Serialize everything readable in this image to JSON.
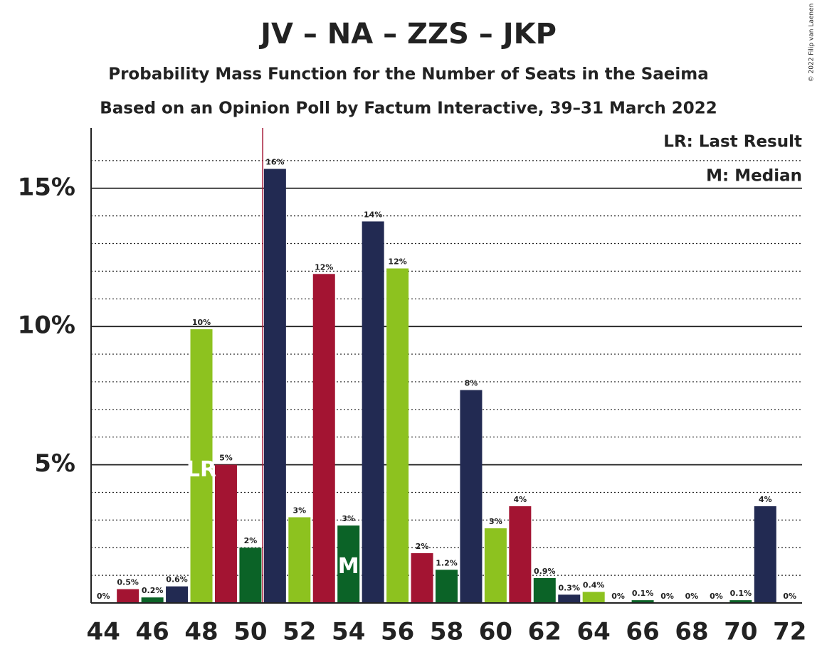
{
  "chart_data": {
    "type": "bar",
    "title": "JV – NA – ZZS – JKP",
    "subtitle": "Probability Mass Function for the Number of Seats in the Saeima",
    "subtitle2": "Based on an Opinion Poll by Factum Interactive, 39–31 March 2022",
    "credit": "© 2022 Filip van Laenen",
    "legend": [
      "LR: Last Result",
      "M: Median"
    ],
    "x": [
      44,
      45,
      46,
      47,
      48,
      49,
      50,
      51,
      52,
      53,
      54,
      55,
      56,
      57,
      58,
      59,
      60,
      61,
      62,
      63,
      64,
      65,
      66,
      67,
      68,
      69,
      70,
      71,
      72
    ],
    "values": [
      0,
      0.5,
      0.2,
      0.6,
      9.9,
      5.0,
      2.0,
      15.7,
      3.1,
      11.9,
      2.8,
      13.8,
      12.1,
      1.8,
      1.2,
      7.7,
      2.7,
      3.5,
      0.9,
      0.3,
      0.4,
      0,
      0.1,
      0,
      0,
      0,
      0.1,
      3.5,
      0
    ],
    "value_labels": [
      "0%",
      "0.5%",
      "0.2%",
      "0.6%",
      "10%",
      "5%",
      "2%",
      "16%",
      "3%",
      "12%",
      "3%",
      "14%",
      "12%",
      "2%",
      "1.2%",
      "8%",
      "3%",
      "4%",
      "0.9%",
      "0.3%",
      "0.4%",
      "0%",
      "0.1%",
      "0%",
      "0%",
      "0%",
      "0.1%",
      "4%",
      "0%"
    ],
    "colors": [
      "#8dc21f",
      "#a31432",
      "#0b6327",
      "#222a52",
      "#8dc21f",
      "#a31432",
      "#0b6327",
      "#222a52",
      "#8dc21f",
      "#a31432",
      "#0b6327",
      "#222a52",
      "#8dc21f",
      "#a31432",
      "#0b6327",
      "#222a52",
      "#8dc21f",
      "#a31432",
      "#0b6327",
      "#222a52",
      "#8dc21f",
      "#a31432",
      "#0b6327",
      "#222a52",
      "#8dc21f",
      "#a31432",
      "#0b6327",
      "#222a52",
      "#8dc21f"
    ],
    "last_result": {
      "x": 48,
      "label": "LR"
    },
    "median": {
      "x": 54,
      "label": "M"
    },
    "reference_line_x": 50.5,
    "xlim": [
      43.5,
      72.5
    ],
    "xticks": [
      44,
      46,
      48,
      50,
      52,
      54,
      56,
      58,
      60,
      62,
      64,
      66,
      68,
      70,
      72
    ],
    "ylim": [
      0,
      17
    ],
    "yticks": [
      {
        "value": 5,
        "label": "5%"
      },
      {
        "value": 10,
        "label": "10%"
      },
      {
        "value": 15,
        "label": "15%"
      }
    ],
    "minor_yticks": [
      1,
      2,
      3,
      4,
      6,
      7,
      8,
      9,
      11,
      12,
      13,
      14,
      16
    ]
  }
}
